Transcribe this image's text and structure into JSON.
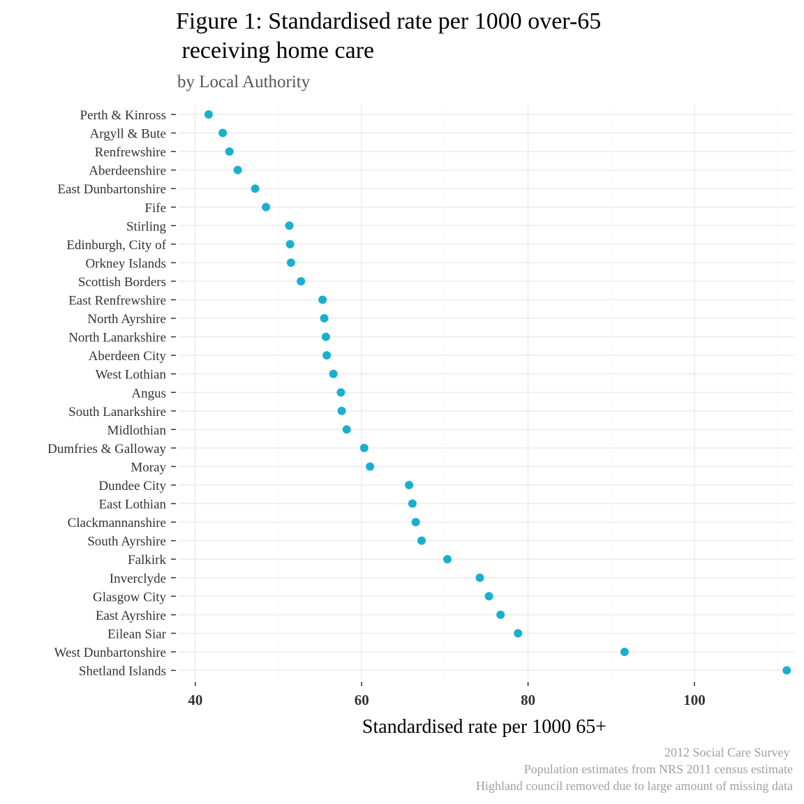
{
  "chart_data": {
    "type": "scatter",
    "title": "Figure 1: Standardised rate per 1000 over-65\n receiving home care",
    "subtitle": "by Local Authority",
    "xlabel": "Standardised rate per 1000 65+",
    "ylabel": "",
    "xlim": [
      38,
      112
    ],
    "xticks": [
      40,
      60,
      80,
      100
    ],
    "grid": true,
    "point_color": "#1aafd0",
    "categories": [
      "Perth & Kinross",
      "Argyll & Bute",
      "Renfrewshire",
      "Aberdeenshire",
      "East Dunbartonshire",
      "Fife",
      "Stirling",
      "Edinburgh, City of",
      "Orkney Islands",
      "Scottish Borders",
      "East Renfrewshire",
      "North Ayrshire",
      "North Lanarkshire",
      "Aberdeen City",
      "West Lothian",
      "Angus",
      "South Lanarkshire",
      "Midlothian",
      "Dumfries & Galloway",
      "Moray",
      "Dundee City",
      "East Lothian",
      "Clackmannanshire",
      "South Ayrshire",
      "Falkirk",
      "Inverclyde",
      "Glasgow City",
      "East Ayrshire",
      "Eilean Siar",
      "West Dunbartonshire",
      "Shetland Islands"
    ],
    "values": [
      41.6,
      43.3,
      44.1,
      45.1,
      47.2,
      48.5,
      51.3,
      51.4,
      51.5,
      52.7,
      55.3,
      55.5,
      55.7,
      55.8,
      56.6,
      57.5,
      57.6,
      58.2,
      60.3,
      61.0,
      65.7,
      66.1,
      66.5,
      67.2,
      70.3,
      74.2,
      75.3,
      76.7,
      78.8,
      91.6,
      111.1
    ]
  },
  "caption": [
    "2012 Social Care Survey ",
    "Population estimates from NRS 2011 census estimate",
    "Highland council removed due to large amount of missing data"
  ]
}
